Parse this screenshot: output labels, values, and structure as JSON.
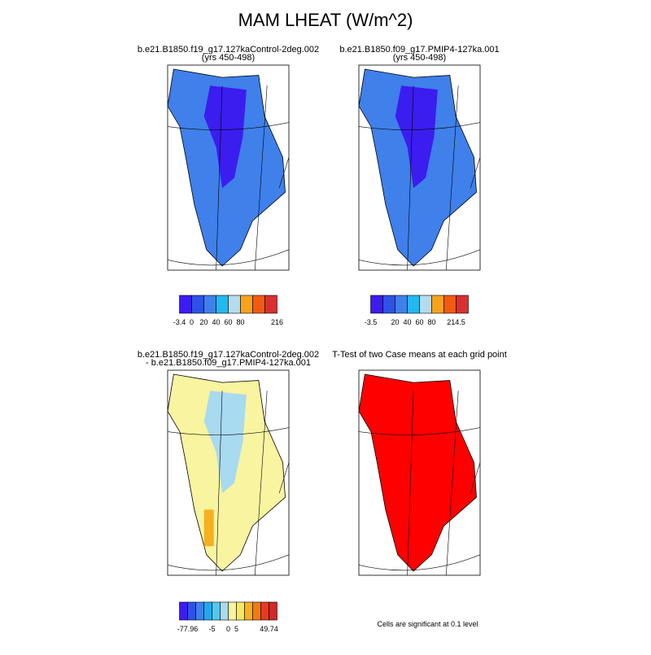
{
  "title": "MAM LHEAT (W/m^2)",
  "panels": [
    {
      "title": [
        "b.e21.B1850.f19_g17.127kaControl-2deg.002",
        "(yrs 450-498)"
      ],
      "colorbar": {
        "colors": [
          "#3b1df0",
          "#2f52e6",
          "#3f80ea",
          "#22b8f0",
          "#b4dcf0",
          "#f6a31c",
          "#f25a10",
          "#d83030"
        ],
        "labels": [
          "-3.4",
          "0",
          "20",
          "40",
          "60",
          "80",
          null,
          null,
          "216"
        ]
      }
    },
    {
      "title": [
        "b.e21.B1850.f09_g17.PMIP4-127ka.001",
        "(yrs 450-498)"
      ],
      "colorbar": {
        "colors": [
          "#3b1df0",
          "#2f52e6",
          "#3f80ea",
          "#22b8f0",
          "#b4dcf0",
          "#f6a31c",
          "#f25a10",
          "#d83030"
        ],
        "labels": [
          "-3.5",
          null,
          "20",
          "40",
          "60",
          "80",
          null,
          "214.5"
        ]
      }
    },
    {
      "title": [
        "b.e21.B1850.f19_g17.127kaControl-2deg.002",
        "- b.e21.B1850.f09_g17.PMIP4-127ka.001"
      ],
      "colorbar": {
        "colors": [
          "#3b1df0",
          "#2f52e6",
          "#3f80ea",
          "#22a8ee",
          "#50c8f2",
          "#a8daf0",
          "#f8f4a0",
          "#f8e860",
          "#f6b020",
          "#f47a10",
          "#e83a20",
          "#d02828"
        ],
        "labels": [
          null,
          "-77.96",
          null,
          null,
          "-5",
          null,
          "0",
          "5",
          null,
          null,
          null,
          "49.74",
          null
        ]
      }
    },
    {
      "title": [
        "T-Test of two Case means at each grid point"
      ],
      "note": "Cells are significant at 0.1 level"
    }
  ]
}
